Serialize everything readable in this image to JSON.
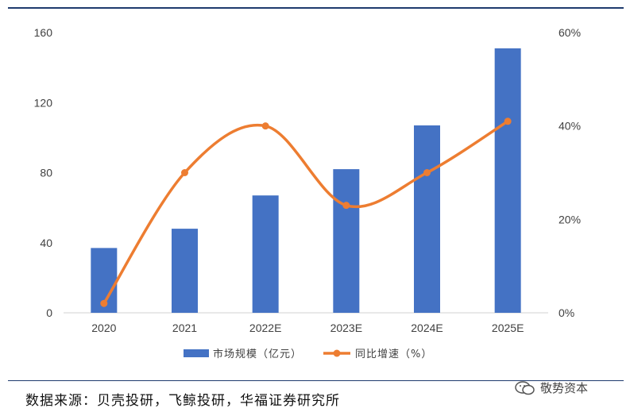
{
  "chart_data": {
    "type": "bar",
    "categories": [
      "2020",
      "2021",
      "2022E",
      "2023E",
      "2024E",
      "2025E"
    ],
    "series": [
      {
        "name": "市场规模（亿元）",
        "type": "bar",
        "axis": "left",
        "color": "#4472c4",
        "values": [
          37,
          48,
          67,
          82,
          107,
          151
        ]
      },
      {
        "name": "同比增速（%）",
        "type": "line",
        "axis": "right",
        "color": "#ed7d31",
        "smooth": true,
        "values": [
          2,
          30,
          40,
          23,
          30,
          41
        ]
      }
    ],
    "y_left": {
      "min": 0,
      "max": 160,
      "ticks": [
        0,
        40,
        80,
        120,
        160
      ]
    },
    "y_right": {
      "min": 0,
      "max": 60,
      "ticks": [
        0,
        20,
        40,
        60
      ],
      "tick_labels": [
        "0%",
        "20%",
        "40%",
        "60%"
      ]
    },
    "legend_position": "bottom",
    "grid": false
  },
  "source": "数据来源：贝壳投研，飞鲸投研，华福证券研究所",
  "watermark": "敬势资本"
}
